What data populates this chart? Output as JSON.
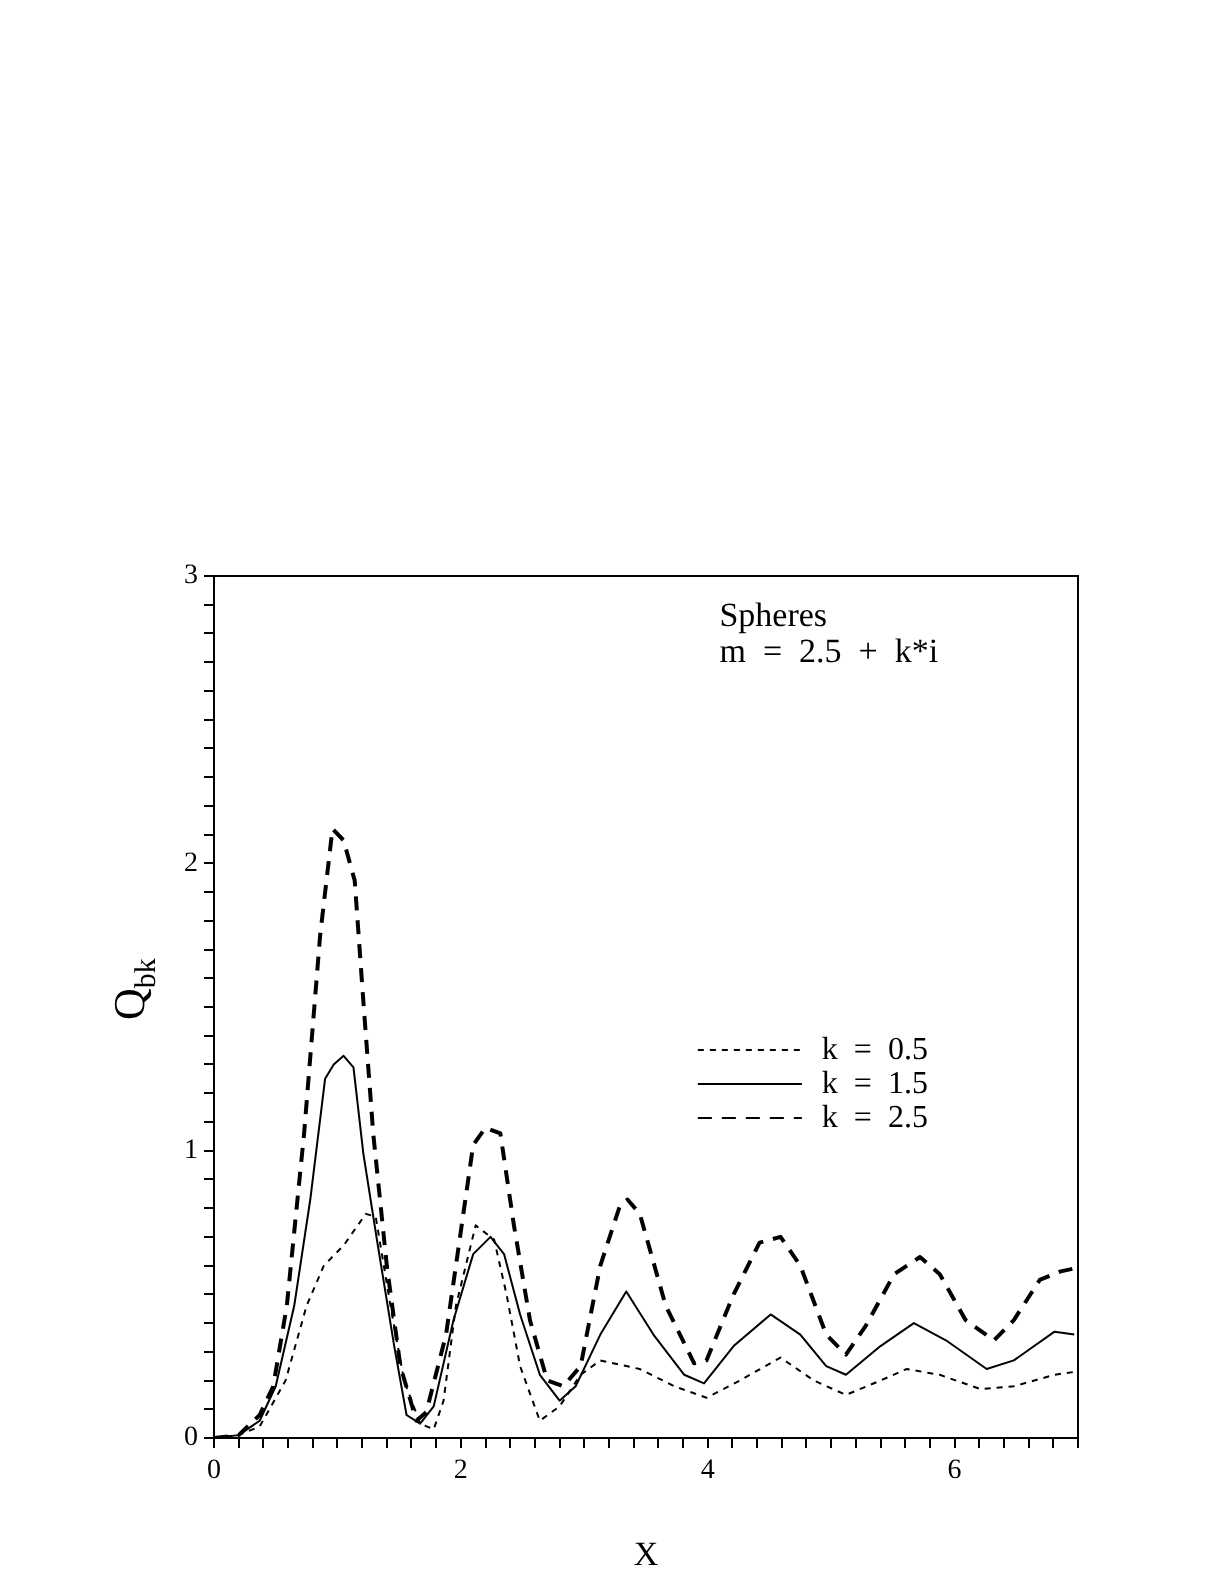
{
  "chart_data": {
    "type": "line",
    "xlabel": "X",
    "ylabel": "Q$_{bk}$",
    "annotations": [
      "Spheres",
      "m  =  2.5  +  k*i"
    ],
    "xlim": [
      0,
      7
    ],
    "ylim": [
      0,
      3
    ],
    "xticks": [
      0,
      {
        "value": 0.2,
        "label": null
      },
      {
        "value": 0.4,
        "label": null
      },
      {
        "value": 0.6,
        "label": null
      },
      {
        "value": 0.8,
        "label": null
      },
      {
        "value": 1,
        "label": null
      },
      {
        "value": 1.2,
        "label": null
      },
      {
        "value": 1.4,
        "label": null
      },
      {
        "value": 1.6,
        "label": null
      },
      {
        "value": 1.8,
        "label": null
      },
      2,
      {
        "value": 2.2,
        "label": null
      },
      {
        "value": 2.4,
        "label": null
      },
      {
        "value": 2.6,
        "label": null
      },
      {
        "value": 2.8,
        "label": null
      },
      {
        "value": 3,
        "label": null
      },
      {
        "value": 3.2,
        "label": null
      },
      {
        "value": 3.4,
        "label": null
      },
      {
        "value": 3.6,
        "label": null
      },
      {
        "value": 3.8,
        "label": null
      },
      4,
      {
        "value": 4.2,
        "label": null
      },
      {
        "value": 4.4,
        "label": null
      },
      {
        "value": 4.6,
        "label": null
      },
      {
        "value": 4.8,
        "label": null
      },
      {
        "value": 5,
        "label": null
      },
      {
        "value": 5.2,
        "label": null
      },
      {
        "value": 5.4,
        "label": null
      },
      {
        "value": 5.6,
        "label": null
      },
      {
        "value": 5.8,
        "label": null
      },
      6,
      {
        "value": 6.2,
        "label": null
      },
      {
        "value": 6.4,
        "label": null
      },
      {
        "value": 6.6,
        "label": null
      },
      {
        "value": 6.8,
        "label": null
      },
      {
        "value": 7,
        "label": null
      }
    ],
    "yticks": [
      0,
      {
        "value": 0.1,
        "label": null
      },
      {
        "value": 0.2,
        "label": null
      },
      {
        "value": 0.3,
        "label": null
      },
      {
        "value": 0.4,
        "label": null
      },
      {
        "value": 0.5,
        "label": null
      },
      {
        "value": 0.6,
        "label": null
      },
      {
        "value": 0.7,
        "label": null
      },
      {
        "value": 0.8,
        "label": null
      },
      {
        "value": 0.9,
        "label": null
      },
      1,
      {
        "value": 1.1,
        "label": null
      },
      {
        "value": 1.2,
        "label": null
      },
      {
        "value": 1.3,
        "label": null
      },
      {
        "value": 1.4,
        "label": null
      },
      {
        "value": 1.5,
        "label": null
      },
      {
        "value": 1.6,
        "label": null
      },
      {
        "value": 1.7,
        "label": null
      },
      {
        "value": 1.8,
        "label": null
      },
      {
        "value": 1.9,
        "label": null
      },
      2,
      {
        "value": 2.1,
        "label": null
      },
      {
        "value": 2.2,
        "label": null
      },
      {
        "value": 2.3,
        "label": null
      },
      {
        "value": 2.4,
        "label": null
      },
      {
        "value": 2.5,
        "label": null
      },
      {
        "value": 2.6,
        "label": null
      },
      {
        "value": 2.7,
        "label": null
      },
      {
        "value": 2.8,
        "label": null
      },
      {
        "value": 2.9,
        "label": null
      },
      3
    ],
    "grid": false,
    "legend": "right",
    "marker": "none",
    "series": [
      {
        "name": "k  =  0.5",
        "color": "#000000",
        "line_style": "dotted",
        "x": [
          0,
          0.2,
          0.37,
          0.58,
          0.75,
          0.89,
          1.05,
          1.23,
          1.31,
          1.43,
          1.54,
          1.67,
          1.78,
          1.86,
          1.96,
          2.12,
          2.27,
          2.37,
          2.48,
          2.64,
          2.8,
          2.97,
          3.13,
          3.45,
          3.73,
          3.99,
          4.26,
          4.59,
          4.86,
          5.12,
          5.4,
          5.61,
          5.88,
          6.21,
          6.48,
          6.81,
          6.97
        ],
        "values": [
          0,
          0.01,
          0.04,
          0.2,
          0.46,
          0.6,
          0.67,
          0.78,
          0.77,
          0.46,
          0.2,
          0.05,
          0.03,
          0.13,
          0.46,
          0.74,
          0.69,
          0.5,
          0.25,
          0.06,
          0.11,
          0.22,
          0.27,
          0.24,
          0.18,
          0.14,
          0.2,
          0.28,
          0.2,
          0.15,
          0.2,
          0.24,
          0.22,
          0.17,
          0.18,
          0.22,
          0.23
        ]
      },
      {
        "name": "k  =  1.5",
        "color": "#000000",
        "line_style": "solid",
        "x": [
          0,
          0.2,
          0.37,
          0.5,
          0.65,
          0.78,
          0.9,
          0.97,
          1.05,
          1.13,
          1.21,
          1.32,
          1.46,
          1.56,
          1.67,
          1.78,
          1.94,
          2.1,
          2.24,
          2.35,
          2.48,
          2.64,
          2.8,
          2.93,
          3.13,
          3.34,
          3.56,
          3.81,
          3.97,
          4.21,
          4.51,
          4.75,
          4.96,
          5.12,
          5.4,
          5.67,
          5.93,
          6.26,
          6.48,
          6.81,
          6.97
        ],
        "values": [
          0,
          0.01,
          0.06,
          0.18,
          0.46,
          0.83,
          1.25,
          1.3,
          1.33,
          1.29,
          0.99,
          0.69,
          0.32,
          0.08,
          0.05,
          0.11,
          0.41,
          0.64,
          0.7,
          0.64,
          0.43,
          0.22,
          0.13,
          0.18,
          0.36,
          0.51,
          0.36,
          0.22,
          0.19,
          0.32,
          0.43,
          0.36,
          0.25,
          0.22,
          0.32,
          0.4,
          0.34,
          0.24,
          0.27,
          0.37,
          0.36
        ]
      },
      {
        "name": "k  =  2.5",
        "color": "#000000",
        "line_style": "dashed",
        "x": [
          0,
          0.2,
          0.37,
          0.48,
          0.59,
          0.73,
          0.86,
          0.96,
          1.05,
          1.14,
          1.21,
          1.29,
          1.4,
          1.51,
          1.64,
          1.72,
          1.88,
          2.02,
          2.1,
          2.2,
          2.32,
          2.43,
          2.56,
          2.7,
          2.83,
          2.97,
          3.13,
          3.29,
          3.35,
          3.45,
          3.66,
          3.89,
          3.99,
          4.21,
          4.42,
          4.59,
          4.75,
          4.96,
          5.12,
          5.28,
          5.51,
          5.72,
          5.88,
          6.09,
          6.32,
          6.48,
          6.69,
          6.86,
          6.97
        ],
        "values": [
          0,
          0.01,
          0.08,
          0.18,
          0.46,
          1.06,
          1.75,
          2.12,
          2.08,
          1.94,
          1.52,
          1.06,
          0.6,
          0.25,
          0.06,
          0.09,
          0.36,
          0.78,
          1.02,
          1.08,
          1.06,
          0.74,
          0.41,
          0.2,
          0.18,
          0.25,
          0.6,
          0.81,
          0.83,
          0.78,
          0.46,
          0.26,
          0.27,
          0.5,
          0.68,
          0.7,
          0.6,
          0.36,
          0.29,
          0.39,
          0.57,
          0.63,
          0.57,
          0.41,
          0.34,
          0.41,
          0.55,
          0.58,
          0.59
        ]
      }
    ]
  }
}
